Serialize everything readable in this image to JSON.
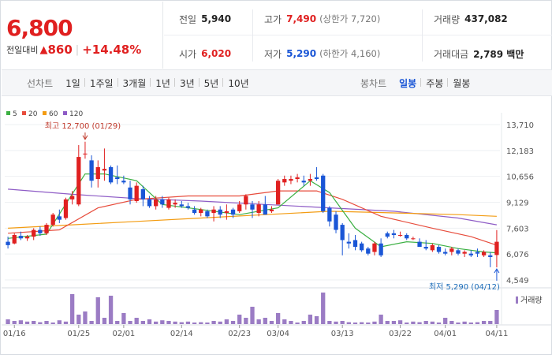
{
  "header": {
    "price": "6,800",
    "change_label": "전일대비",
    "change_arrow": "▲",
    "change_value": "860",
    "change_separator": "|",
    "change_percent": "+14.48%"
  },
  "stats": {
    "prev_close": {
      "label": "전일",
      "value": "5,940"
    },
    "high": {
      "label": "고가",
      "value": "7,490",
      "sub": "(상한가 7,720)"
    },
    "volume": {
      "label": "거래량",
      "value": "437,082"
    },
    "open": {
      "label": "시가",
      "value": "6,020"
    },
    "low": {
      "label": "저가",
      "value": "5,290",
      "sub": "(하한가 4,160)"
    },
    "trade_value": {
      "label": "거래대금",
      "value": "2,789 백만"
    }
  },
  "toolbar": {
    "line_chart_title": "선차트",
    "line_periods": [
      "1일",
      "1주일",
      "3개월",
      "1년",
      "3년",
      "5년",
      "10년"
    ],
    "candle_title": "봉차트",
    "candle_periods": [
      "일봉",
      "주봉",
      "월봉"
    ],
    "candle_active": "일봉"
  },
  "legend": [
    {
      "label": "5",
      "color": "#3cb043"
    },
    {
      "label": "20",
      "color": "#e74c3c"
    },
    {
      "label": "60",
      "color": "#f39c12"
    },
    {
      "label": "120",
      "color": "#8e5cc6"
    }
  ],
  "colors": {
    "up": "#e02020",
    "down": "#1a56d6",
    "volume": "#9b7cc4"
  },
  "chart_data": {
    "type": "candlestick",
    "y_ticks": [
      "13,710",
      "12,183",
      "10,656",
      "9,129",
      "7,603",
      "6,076",
      "4,549"
    ],
    "ylim": [
      4549,
      13710
    ],
    "x_ticks": [
      "01/16",
      "01/25",
      "02/01",
      "02/14",
      "02/23",
      "03/04",
      "03/13",
      "03/22",
      "04/01",
      "04/11"
    ],
    "high_annotation": "최고 12,700 (01/29)",
    "low_annotation": "최저 5,290 (04/12)",
    "volume_label": "거래량",
    "candles": [
      {
        "o": 6800,
        "h": 7100,
        "l": 6400,
        "c": 6600
      },
      {
        "o": 6700,
        "h": 7300,
        "l": 6650,
        "c": 7200
      },
      {
        "o": 7150,
        "h": 7400,
        "l": 6900,
        "c": 7000
      },
      {
        "o": 7000,
        "h": 7200,
        "l": 6850,
        "c": 7100
      },
      {
        "o": 7100,
        "h": 7600,
        "l": 6900,
        "c": 7500
      },
      {
        "o": 7500,
        "h": 7700,
        "l": 7150,
        "c": 7300
      },
      {
        "o": 7300,
        "h": 7900,
        "l": 7200,
        "c": 7800
      },
      {
        "o": 7800,
        "h": 8500,
        "l": 7700,
        "c": 8400
      },
      {
        "o": 8300,
        "h": 8700,
        "l": 7900,
        "c": 8100
      },
      {
        "o": 8200,
        "h": 9400,
        "l": 8100,
        "c": 9300
      },
      {
        "o": 9300,
        "h": 9800,
        "l": 9000,
        "c": 9500
      },
      {
        "o": 9000,
        "h": 12500,
        "l": 8900,
        "c": 11800
      },
      {
        "o": 12000,
        "h": 12700,
        "l": 11700,
        "c": 12000
      },
      {
        "o": 11600,
        "h": 11900,
        "l": 10000,
        "c": 10400
      },
      {
        "o": 10500,
        "h": 11600,
        "l": 10000,
        "c": 11200
      },
      {
        "o": 11000,
        "h": 12300,
        "l": 10400,
        "c": 11100
      },
      {
        "o": 11200,
        "h": 11300,
        "l": 10200,
        "c": 10300
      },
      {
        "o": 10600,
        "h": 11300,
        "l": 10200,
        "c": 10500
      },
      {
        "o": 10400,
        "h": 10700,
        "l": 10200,
        "c": 10300
      },
      {
        "o": 10000,
        "h": 10400,
        "l": 9000,
        "c": 9300
      },
      {
        "o": 9200,
        "h": 10300,
        "l": 9100,
        "c": 10100
      },
      {
        "o": 9900,
        "h": 10100,
        "l": 8900,
        "c": 9300
      },
      {
        "o": 9300,
        "h": 9500,
        "l": 8800,
        "c": 8900
      },
      {
        "o": 8900,
        "h": 9500,
        "l": 8700,
        "c": 9300
      },
      {
        "o": 9300,
        "h": 9500,
        "l": 8800,
        "c": 9000
      },
      {
        "o": 8800,
        "h": 9400,
        "l": 8700,
        "c": 9300
      },
      {
        "o": 9000,
        "h": 9300,
        "l": 8800,
        "c": 9100
      },
      {
        "o": 9000,
        "h": 9200,
        "l": 8800,
        "c": 8900
      },
      {
        "o": 8900,
        "h": 9100,
        "l": 8700,
        "c": 8800
      },
      {
        "o": 8700,
        "h": 8900,
        "l": 8400,
        "c": 8500
      },
      {
        "o": 8500,
        "h": 8800,
        "l": 8300,
        "c": 8700
      },
      {
        "o": 8600,
        "h": 8700,
        "l": 8200,
        "c": 8300
      },
      {
        "o": 8500,
        "h": 8900,
        "l": 8000,
        "c": 8700
      },
      {
        "o": 8700,
        "h": 8900,
        "l": 8200,
        "c": 8400
      },
      {
        "o": 8500,
        "h": 9000,
        "l": 8100,
        "c": 8600
      },
      {
        "o": 8700,
        "h": 8800,
        "l": 8200,
        "c": 8400
      },
      {
        "o": 8600,
        "h": 9200,
        "l": 8500,
        "c": 9000
      },
      {
        "o": 9000,
        "h": 9600,
        "l": 8700,
        "c": 9500
      },
      {
        "o": 9000,
        "h": 9200,
        "l": 8200,
        "c": 8700
      },
      {
        "o": 8500,
        "h": 9200,
        "l": 8300,
        "c": 9000
      },
      {
        "o": 9000,
        "h": 9500,
        "l": 8400,
        "c": 8400
      },
      {
        "o": 8600,
        "h": 8900,
        "l": 8500,
        "c": 8700
      },
      {
        "o": 9000,
        "h": 10500,
        "l": 9000,
        "c": 10400
      },
      {
        "o": 10300,
        "h": 10700,
        "l": 10100,
        "c": 10500
      },
      {
        "o": 10400,
        "h": 10700,
        "l": 10200,
        "c": 10500
      },
      {
        "o": 10500,
        "h": 10800,
        "l": 10300,
        "c": 10600
      },
      {
        "o": 10400,
        "h": 10700,
        "l": 10100,
        "c": 10300
      },
      {
        "o": 10400,
        "h": 10800,
        "l": 10100,
        "c": 10500
      },
      {
        "o": 10600,
        "h": 11200,
        "l": 10400,
        "c": 10500
      },
      {
        "o": 10700,
        "h": 10800,
        "l": 8500,
        "c": 8600
      },
      {
        "o": 8800,
        "h": 8900,
        "l": 7700,
        "c": 8000
      },
      {
        "o": 8400,
        "h": 8600,
        "l": 7300,
        "c": 7500
      },
      {
        "o": 7800,
        "h": 7900,
        "l": 6000,
        "c": 6900
      },
      {
        "o": 6800,
        "h": 7300,
        "l": 6400,
        "c": 6700
      },
      {
        "o": 6900,
        "h": 7200,
        "l": 6300,
        "c": 6500
      },
      {
        "o": 6700,
        "h": 6800,
        "l": 6200,
        "c": 6300
      },
      {
        "o": 6400,
        "h": 6500,
        "l": 6000,
        "c": 6100
      },
      {
        "o": 6200,
        "h": 6800,
        "l": 6000,
        "c": 6700
      },
      {
        "o": 6700,
        "h": 7000,
        "l": 5900,
        "c": 6000
      },
      {
        "o": 7300,
        "h": 7400,
        "l": 7000,
        "c": 7100
      },
      {
        "o": 7300,
        "h": 7500,
        "l": 7000,
        "c": 7200
      },
      {
        "o": 7200,
        "h": 7400,
        "l": 7100,
        "c": 7200
      },
      {
        "o": 7200,
        "h": 7300,
        "l": 6900,
        "c": 7000
      },
      {
        "o": 7000,
        "h": 7100,
        "l": 6900,
        "c": 7000
      },
      {
        "o": 6800,
        "h": 7000,
        "l": 6500,
        "c": 6500
      },
      {
        "o": 6500,
        "h": 6900,
        "l": 6300,
        "c": 6400
      },
      {
        "o": 6300,
        "h": 6700,
        "l": 6200,
        "c": 6600
      },
      {
        "o": 6500,
        "h": 6600,
        "l": 6100,
        "c": 6200
      },
      {
        "o": 6200,
        "h": 6400,
        "l": 6000,
        "c": 6100
      },
      {
        "o": 6200,
        "h": 6500,
        "l": 6000,
        "c": 6400
      },
      {
        "o": 6300,
        "h": 6400,
        "l": 6000,
        "c": 6100
      },
      {
        "o": 6100,
        "h": 6300,
        "l": 5900,
        "c": 6200
      },
      {
        "o": 6100,
        "h": 6300,
        "l": 5900,
        "c": 6000
      },
      {
        "o": 6200,
        "h": 6400,
        "l": 5900,
        "c": 6100
      },
      {
        "o": 6000,
        "h": 6300,
        "l": 5900,
        "c": 6200
      },
      {
        "o": 6000,
        "h": 6200,
        "l": 5300,
        "c": 5900
      },
      {
        "o": 6020,
        "h": 7490,
        "l": 5290,
        "c": 6800
      }
    ],
    "volumes": [
      0.15,
      0.1,
      0.12,
      0.08,
      0.1,
      0.06,
      0.1,
      0.05,
      0.12,
      0.08,
      0.95,
      0.3,
      0.4,
      0.1,
      0.85,
      0.2,
      0.9,
      0.1,
      0.35,
      0.1,
      0.2,
      0.1,
      0.15,
      0.08,
      0.12,
      0.1,
      0.08,
      0.06,
      0.08,
      0.05,
      0.06,
      0.05,
      0.1,
      0.08,
      0.15,
      0.1,
      0.3,
      0.2,
      0.55,
      0.15,
      0.2,
      0.1,
      0.35,
      0.15,
      0.1,
      0.05,
      0.1,
      0.3,
      0.25,
      1.0,
      0.1,
      0.08,
      0.1,
      0.06,
      0.05,
      0.06,
      0.05,
      0.08,
      0.3,
      0.1,
      0.1,
      0.12,
      0.05,
      0.08,
      0.06,
      0.1,
      0.08,
      0.05,
      0.2,
      0.1,
      0.05,
      0.08,
      0.05,
      0.06,
      0.1,
      0.1,
      0.45
    ],
    "ma5": [
      [
        0,
        7000
      ],
      [
        6,
        7250
      ],
      [
        12,
        10800
      ],
      [
        15,
        10800
      ],
      [
        20,
        10400
      ],
      [
        24,
        9000
      ],
      [
        30,
        8700
      ],
      [
        36,
        8400
      ],
      [
        42,
        8800
      ],
      [
        47,
        10400
      ],
      [
        50,
        9700
      ],
      [
        54,
        7600
      ],
      [
        58,
        6500
      ],
      [
        62,
        6800
      ],
      [
        66,
        6700
      ],
      [
        70,
        6400
      ],
      [
        74,
        6200
      ],
      [
        76,
        6150
      ]
    ],
    "ma20": [
      [
        0,
        7300
      ],
      [
        8,
        7500
      ],
      [
        14,
        8800
      ],
      [
        20,
        9300
      ],
      [
        28,
        9500
      ],
      [
        36,
        9500
      ],
      [
        42,
        9800
      ],
      [
        48,
        9800
      ],
      [
        52,
        9300
      ],
      [
        58,
        8300
      ],
      [
        66,
        7600
      ],
      [
        72,
        7100
      ],
      [
        76,
        6600
      ]
    ],
    "ma60": [
      [
        0,
        7600
      ],
      [
        10,
        7800
      ],
      [
        20,
        8000
      ],
      [
        30,
        8200
      ],
      [
        40,
        8400
      ],
      [
        50,
        8600
      ],
      [
        60,
        8500
      ],
      [
        70,
        8400
      ],
      [
        76,
        8300
      ]
    ],
    "ma120": [
      [
        0,
        9900
      ],
      [
        10,
        9600
      ],
      [
        20,
        9350
      ],
      [
        30,
        9200
      ],
      [
        40,
        9000
      ],
      [
        50,
        8800
      ],
      [
        60,
        8600
      ],
      [
        70,
        8200
      ],
      [
        76,
        7800
      ]
    ]
  }
}
